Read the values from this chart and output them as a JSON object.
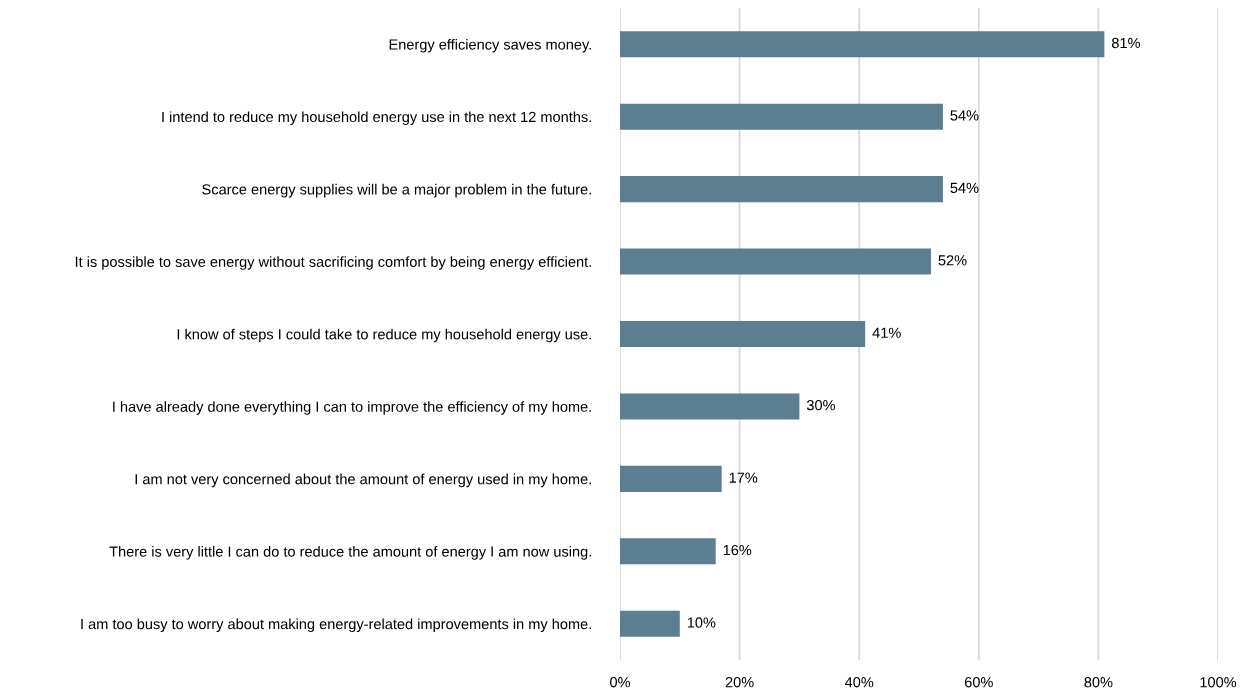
{
  "chart_data": {
    "type": "bar",
    "orientation": "horizontal",
    "categories": [
      "Energy efficiency saves money.",
      "I intend to reduce my household energy use in the next 12 months.",
      "Scarce energy supplies will be a major problem in the future.",
      "It is possible to save energy without sacrificing comfort by being energy efficient.",
      "I know of steps I could take to reduce my household energy use.",
      "I have already done everything I can to improve the efficiency of my home.",
      "I am not very concerned about the amount of energy used in my home.",
      "There is very little I can do to reduce the amount of energy I am now using.",
      "I am too busy to worry about making energy-related improvements in my home."
    ],
    "values": [
      81,
      54,
      54,
      52,
      41,
      30,
      17,
      16,
      10
    ],
    "value_labels": [
      "81%",
      "54%",
      "54%",
      "52%",
      "41%",
      "30%",
      "17%",
      "16%",
      "10%"
    ],
    "color": "#5b7e91",
    "xlim": [
      0,
      100
    ],
    "xticks": [
      {
        "value": 0,
        "label": "0%"
      },
      {
        "value": 20,
        "label": "20%"
      },
      {
        "value": 40,
        "label": "40%"
      },
      {
        "value": 60,
        "label": "60%"
      },
      {
        "value": 80,
        "label": "80%"
      },
      {
        "value": 100,
        "label": "100%"
      }
    ],
    "grid": "x"
  }
}
